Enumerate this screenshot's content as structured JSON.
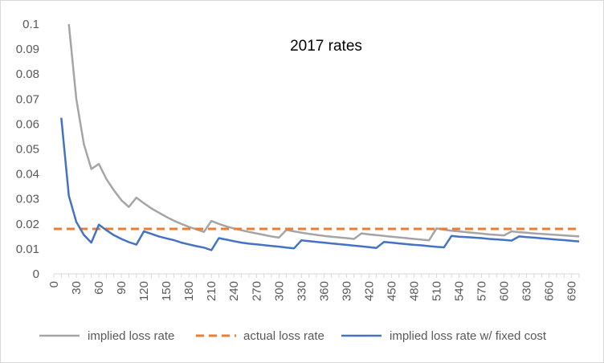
{
  "chart_data": {
    "type": "line",
    "title": "2017 rates",
    "xlabel": "",
    "ylabel": "",
    "xlim": [
      0,
      700
    ],
    "ylim": [
      0,
      0.1
    ],
    "grid": false,
    "legend_position": "bottom",
    "x_ticks": [
      "0",
      "30",
      "60",
      "90",
      "120",
      "150",
      "180",
      "210",
      "240",
      "270",
      "300",
      "330",
      "360",
      "390",
      "420",
      "450",
      "480",
      "510",
      "540",
      "570",
      "600",
      "630",
      "660",
      "690"
    ],
    "y_ticks": [
      "0",
      "0.01",
      "0.02",
      "0.03",
      "0.04",
      "0.05",
      "0.06",
      "0.07",
      "0.08",
      "0.09",
      "0.1"
    ],
    "series": [
      {
        "name": "implied loss rate",
        "color": "#a5a5a5",
        "style": "solid",
        "x": [
          20,
          30,
          40,
          50,
          60,
          70,
          80,
          90,
          100,
          110,
          120,
          130,
          140,
          150,
          160,
          170,
          180,
          190,
          200,
          210,
          220,
          230,
          240,
          250,
          260,
          270,
          280,
          290,
          300,
          310,
          320,
          330,
          340,
          350,
          360,
          370,
          380,
          390,
          400,
          410,
          420,
          430,
          440,
          450,
          460,
          470,
          480,
          490,
          500,
          510,
          520,
          530,
          540,
          550,
          560,
          570,
          580,
          590,
          600,
          610,
          620,
          630,
          640,
          650,
          660,
          670,
          680,
          690,
          700
        ],
        "values": [
          0.1,
          0.07,
          0.052,
          0.042,
          0.044,
          0.038,
          0.0335,
          0.0295,
          0.0268,
          0.0305,
          0.0283,
          0.0262,
          0.0245,
          0.0228,
          0.0213,
          0.02,
          0.0188,
          0.0178,
          0.0168,
          0.0212,
          0.02,
          0.019,
          0.0182,
          0.0175,
          0.0168,
          0.0162,
          0.0156,
          0.015,
          0.0145,
          0.0176,
          0.017,
          0.0165,
          0.016,
          0.0156,
          0.0152,
          0.0149,
          0.0146,
          0.0143,
          0.014,
          0.0162,
          0.0158,
          0.0155,
          0.0152,
          0.0149,
          0.0146,
          0.0143,
          0.014,
          0.0137,
          0.0134,
          0.0182,
          0.0177,
          0.0173,
          0.017,
          0.0167,
          0.0164,
          0.0161,
          0.0158,
          0.0156,
          0.0154,
          0.017,
          0.0167,
          0.0165,
          0.0162,
          0.016,
          0.0158,
          0.0156,
          0.0154,
          0.0152,
          0.015
        ]
      },
      {
        "name": "actual loss rate",
        "color": "#ed7d31",
        "style": "dashed",
        "x": [
          0,
          700
        ],
        "values": [
          0.018,
          0.018
        ]
      },
      {
        "name": "implied loss rate w/ fixed cost",
        "color": "#4472c4",
        "style": "solid",
        "x": [
          10,
          20,
          30,
          40,
          50,
          60,
          70,
          80,
          90,
          100,
          110,
          120,
          130,
          140,
          150,
          160,
          170,
          180,
          190,
          200,
          210,
          220,
          230,
          240,
          250,
          260,
          270,
          280,
          290,
          300,
          310,
          320,
          330,
          340,
          350,
          360,
          370,
          380,
          390,
          400,
          410,
          420,
          430,
          440,
          450,
          460,
          470,
          480,
          490,
          500,
          510,
          520,
          530,
          540,
          550,
          560,
          570,
          580,
          590,
          600,
          610,
          620,
          630,
          640,
          650,
          660,
          670,
          680,
          690,
          700
        ],
        "values": [
          0.0625,
          0.0313,
          0.0208,
          0.0156,
          0.0125,
          0.0197,
          0.0175,
          0.0155,
          0.014,
          0.0127,
          0.0117,
          0.017,
          0.016,
          0.015,
          0.0142,
          0.0135,
          0.0125,
          0.0118,
          0.0111,
          0.0105,
          0.0095,
          0.0143,
          0.0137,
          0.0131,
          0.0125,
          0.0121,
          0.0118,
          0.0115,
          0.0112,
          0.0109,
          0.0105,
          0.0102,
          0.0134,
          0.0131,
          0.0128,
          0.0125,
          0.0122,
          0.0119,
          0.0116,
          0.0113,
          0.011,
          0.0107,
          0.0104,
          0.0128,
          0.0125,
          0.0122,
          0.0119,
          0.0116,
          0.0114,
          0.0111,
          0.0108,
          0.0106,
          0.0152,
          0.0149,
          0.0147,
          0.0145,
          0.0143,
          0.014,
          0.0138,
          0.0136,
          0.0133,
          0.015,
          0.0147,
          0.0145,
          0.0142,
          0.014,
          0.0137,
          0.0135,
          0.0132,
          0.013
        ]
      }
    ]
  }
}
